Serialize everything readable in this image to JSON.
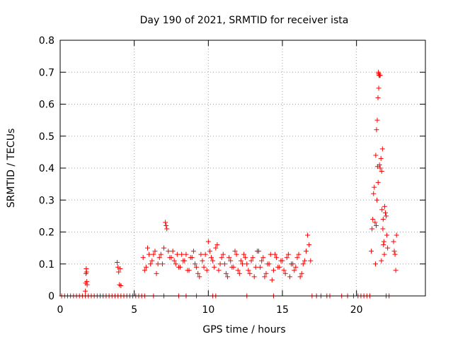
{
  "chart_data": {
    "type": "scatter",
    "title": "Day 190 of 2021, SRMTID for receiver ista",
    "xlabel": "GPS time / hours",
    "ylabel": "SRMTID / TECUs",
    "xlim": [
      0,
      24.65
    ],
    "ylim": [
      0,
      0.8
    ],
    "xticks": [
      0,
      5,
      10,
      15,
      20
    ],
    "xtick_labels": [
      "0",
      "5",
      "10",
      "15",
      "20"
    ],
    "yticks": [
      0,
      0.1,
      0.2,
      0.3,
      0.4,
      0.5,
      0.6,
      0.7,
      0.8
    ],
    "ytick_labels": [
      "0",
      "0.1",
      "0.2",
      "0.3",
      "0.4",
      "0.5",
      "0.6",
      "0.7",
      "0.8"
    ],
    "grid": true,
    "marker": "+",
    "color": "#ff0000",
    "series": [
      {
        "name": "SRMTID",
        "x": [
          0.1,
          0.3,
          0.5,
          0.7,
          0.9,
          1.1,
          1.3,
          1.5,
          1.7,
          1.9,
          2.1,
          2.3,
          2.5,
          2.7,
          2.9,
          3.1,
          3.3,
          3.5,
          3.7,
          3.9,
          4.1,
          4.3,
          4.5,
          4.7,
          4.9,
          5.1,
          5.3,
          5.5,
          5.7,
          6.3,
          7.0,
          8.0,
          8.5,
          9.2,
          10.3,
          10.5,
          12.6,
          14.4,
          17.0,
          17.3,
          17.6,
          18.0,
          18.2,
          19.0,
          19.4,
          19.8,
          20.1,
          20.3,
          20.5,
          20.7,
          20.9,
          22.0,
          22.2,
          1.7,
          1.72,
          1.74,
          1.76,
          1.78,
          1.8,
          1.82,
          3.85,
          3.9,
          3.95,
          4.0,
          4.05,
          4.1,
          5.6,
          5.8,
          6.0,
          6.2,
          6.4,
          6.6,
          6.8,
          7.0,
          7.1,
          7.15,
          7.2,
          7.4,
          7.6,
          7.8,
          8.0,
          8.2,
          8.4,
          8.6,
          8.8,
          9.0,
          9.2,
          9.4,
          9.6,
          9.8,
          10.0,
          10.2,
          10.4,
          10.6,
          10.8,
          11.0,
          11.2,
          11.4,
          11.6,
          11.8,
          12.0,
          12.2,
          12.4,
          12.6,
          12.8,
          13.0,
          13.2,
          13.4,
          13.6,
          13.8,
          14.0,
          14.2,
          14.4,
          14.6,
          14.8,
          15.0,
          15.2,
          15.4,
          15.6,
          15.8,
          16.0,
          16.2,
          16.4,
          16.6,
          16.7,
          16.8,
          16.9,
          5.7,
          5.9,
          6.1,
          6.3,
          6.5,
          6.7,
          6.9,
          7.3,
          7.5,
          7.7,
          7.9,
          8.1,
          8.3,
          8.5,
          8.7,
          8.9,
          9.1,
          9.3,
          9.5,
          9.7,
          9.9,
          10.1,
          10.3,
          10.5,
          10.7,
          10.9,
          11.1,
          11.3,
          11.5,
          11.7,
          11.9,
          12.1,
          12.3,
          12.5,
          12.7,
          12.9,
          13.1,
          13.3,
          13.5,
          13.7,
          13.9,
          14.1,
          14.3,
          14.5,
          14.7,
          14.9,
          15.1,
          15.3,
          15.5,
          15.7,
          15.9,
          16.1,
          16.3,
          16.5,
          21.0,
          21.05,
          21.1,
          21.15,
          21.2,
          21.3,
          21.35,
          21.4,
          21.45,
          21.5,
          21.55,
          21.6,
          21.65,
          21.7,
          21.75,
          21.8,
          21.85,
          21.9,
          21.95,
          22.0,
          22.05,
          22.1,
          22.5,
          22.55,
          22.6,
          22.65,
          22.7,
          21.48,
          21.52,
          21.5,
          21.46,
          21.42,
          21.38,
          21.33,
          21.28,
          21.25,
          21.55,
          21.6,
          21.68,
          21.72,
          21.78,
          21.82,
          21.88
        ],
        "y": [
          0.0,
          0.0,
          0.0,
          0.0,
          0.0,
          0.0,
          0.0,
          0.0,
          0.0,
          0.0,
          0.0,
          0.0,
          0.0,
          0.0,
          0.0,
          0.0,
          0.0,
          0.0,
          0.0,
          0.0,
          0.0,
          0.0,
          0.0,
          0.0,
          0.0,
          0.0,
          0.0,
          0.0,
          0.0,
          0.0,
          0.0,
          0.0,
          0.0,
          0.0,
          0.0,
          0.0,
          0.0,
          0.0,
          0.0,
          0.0,
          0.0,
          0.0,
          0.0,
          0.0,
          0.0,
          0.0,
          0.0,
          0.0,
          0.0,
          0.0,
          0.0,
          0.0,
          0.0,
          0.015,
          0.04,
          0.07,
          0.085,
          0.075,
          0.045,
          0.035,
          0.105,
          0.09,
          0.075,
          0.035,
          0.085,
          0.032,
          0.12,
          0.09,
          0.13,
          0.11,
          0.14,
          0.1,
          0.13,
          0.15,
          0.23,
          0.22,
          0.21,
          0.12,
          0.14,
          0.1,
          0.09,
          0.13,
          0.11,
          0.08,
          0.12,
          0.14,
          0.09,
          0.06,
          0.11,
          0.13,
          0.17,
          0.12,
          0.09,
          0.16,
          0.1,
          0.13,
          0.07,
          0.12,
          0.09,
          0.14,
          0.08,
          0.11,
          0.13,
          0.1,
          0.07,
          0.12,
          0.09,
          0.14,
          0.11,
          0.06,
          0.1,
          0.13,
          0.08,
          0.12,
          0.09,
          0.11,
          0.07,
          0.13,
          0.1,
          0.08,
          0.12,
          0.06,
          0.1,
          0.14,
          0.19,
          0.16,
          0.11,
          0.08,
          0.15,
          0.1,
          0.13,
          0.07,
          0.12,
          0.1,
          0.14,
          0.12,
          0.11,
          0.13,
          0.09,
          0.11,
          0.13,
          0.08,
          0.12,
          0.1,
          0.07,
          0.13,
          0.09,
          0.08,
          0.14,
          0.11,
          0.15,
          0.08,
          0.12,
          0.1,
          0.06,
          0.11,
          0.09,
          0.13,
          0.07,
          0.1,
          0.12,
          0.08,
          0.11,
          0.06,
          0.14,
          0.09,
          0.12,
          0.07,
          0.1,
          0.05,
          0.13,
          0.09,
          0.11,
          0.08,
          0.12,
          0.06,
          0.1,
          0.09,
          0.13,
          0.07,
          0.11,
          0.14,
          0.21,
          0.24,
          0.32,
          0.34,
          0.44,
          0.52,
          0.55,
          0.62,
          0.65,
          0.69,
          0.69,
          0.43,
          0.39,
          0.46,
          0.24,
          0.17,
          0.28,
          0.26,
          0.25,
          0.19,
          0.15,
          0.17,
          0.14,
          0.13,
          0.08,
          0.19,
          0.7,
          0.69,
          0.695,
          0.355,
          0.405,
          0.3,
          0.22,
          0.1,
          0.23,
          0.41,
          0.4,
          0.11,
          0.27,
          0.21,
          0.16,
          0.13
        ]
      }
    ]
  }
}
